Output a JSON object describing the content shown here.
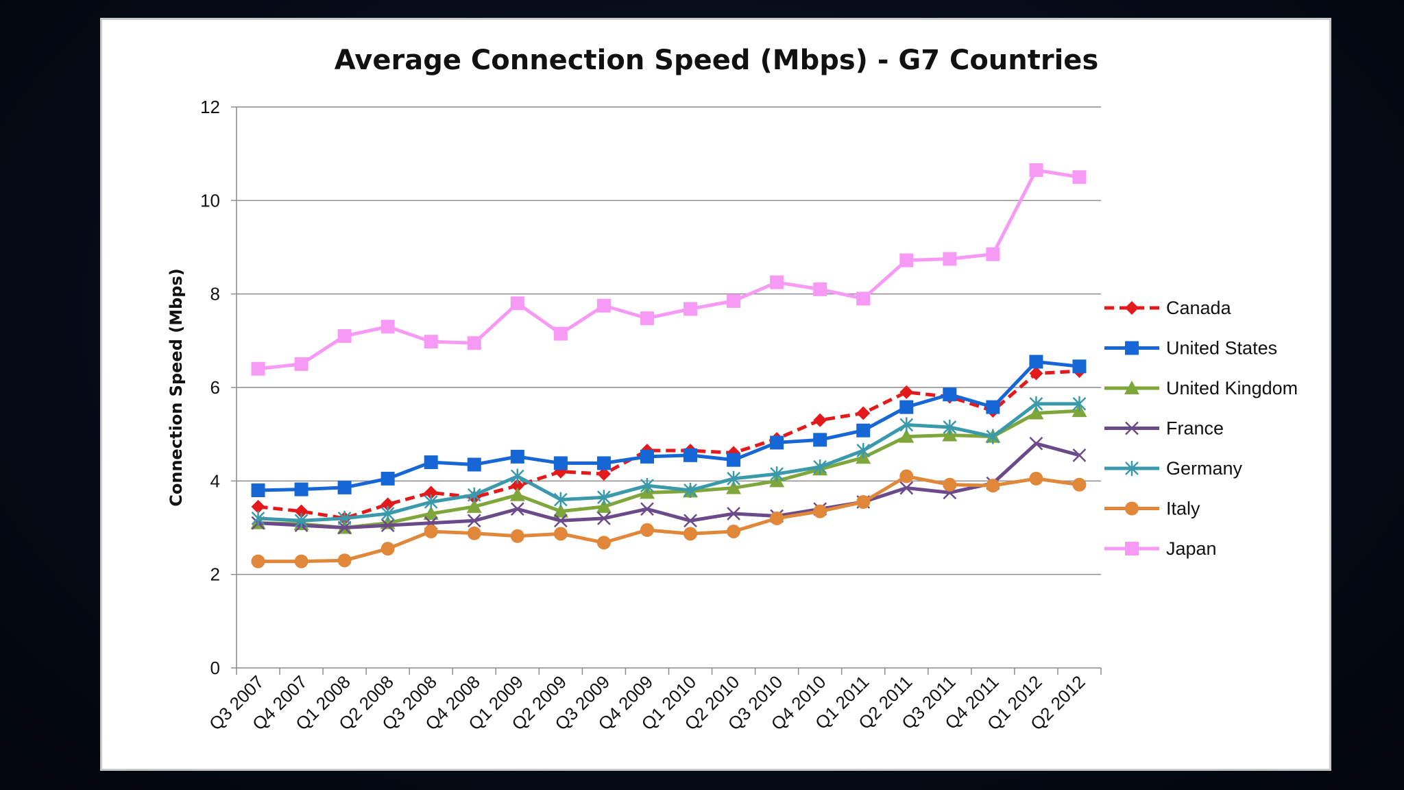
{
  "chart_data": {
    "type": "line",
    "title": "Average Connection  Speed (Mbps) - G7 Countries",
    "xlabel": "",
    "ylabel": "Connection Speed (Mbps)",
    "ylim": [
      0,
      12
    ],
    "yticks": [
      0,
      2,
      4,
      6,
      8,
      10,
      12
    ],
    "grid": true,
    "legend_position": "right",
    "categories": [
      "Q3 2007",
      "Q4 2007",
      "Q1 2008",
      "Q2 2008",
      "Q3 2008",
      "Q4 2008",
      "Q1 2009",
      "Q2 2009",
      "Q3 2009",
      "Q4 2009",
      "Q1 2010",
      "Q2 2010",
      "Q3 2010",
      "Q4 2010",
      "Q1 2011",
      "Q2 2011",
      "Q3 2011",
      "Q4 2011",
      "Q1 2012",
      "Q2 2012"
    ],
    "series": [
      {
        "name": "Canada",
        "color": "#e31a1c",
        "dashed": true,
        "marker": "diamond",
        "values": [
          3.45,
          3.35,
          3.2,
          3.5,
          3.75,
          3.65,
          3.9,
          4.2,
          4.15,
          4.65,
          4.65,
          4.6,
          4.9,
          5.3,
          5.45,
          5.9,
          5.8,
          5.5,
          6.3,
          6.35
        ]
      },
      {
        "name": "United States",
        "color": "#1766d6",
        "dashed": false,
        "marker": "square",
        "values": [
          3.8,
          3.82,
          3.86,
          4.05,
          4.4,
          4.35,
          4.52,
          4.38,
          4.38,
          4.52,
          4.55,
          4.45,
          4.82,
          4.88,
          5.08,
          5.58,
          5.85,
          5.58,
          6.55,
          6.45
        ]
      },
      {
        "name": "United Kingdom",
        "color": "#7ea63a",
        "dashed": false,
        "marker": "triangle",
        "values": [
          3.1,
          3.08,
          3.0,
          3.1,
          3.3,
          3.45,
          3.7,
          3.35,
          3.45,
          3.75,
          3.78,
          3.85,
          4.0,
          4.25,
          4.5,
          4.95,
          4.98,
          4.95,
          5.45,
          5.5
        ]
      },
      {
        "name": "France",
        "color": "#6b4a8a",
        "dashed": false,
        "marker": "x",
        "values": [
          3.1,
          3.05,
          3.0,
          3.05,
          3.1,
          3.15,
          3.4,
          3.15,
          3.2,
          3.4,
          3.15,
          3.3,
          3.25,
          3.4,
          3.55,
          3.85,
          3.75,
          3.95,
          4.8,
          4.55
        ]
      },
      {
        "name": "Germany",
        "color": "#3a9aab",
        "dashed": false,
        "marker": "asterisk",
        "values": [
          3.2,
          3.15,
          3.2,
          3.3,
          3.55,
          3.7,
          4.1,
          3.6,
          3.65,
          3.9,
          3.8,
          4.05,
          4.15,
          4.3,
          4.65,
          5.2,
          5.15,
          4.95,
          5.65,
          5.65
        ]
      },
      {
        "name": "Italy",
        "color": "#e0873a",
        "dashed": false,
        "marker": "circle",
        "values": [
          2.28,
          2.28,
          2.3,
          2.55,
          2.92,
          2.88,
          2.82,
          2.87,
          2.68,
          2.95,
          2.87,
          2.92,
          3.2,
          3.35,
          3.55,
          4.1,
          3.92,
          3.9,
          4.05,
          3.92
        ]
      },
      {
        "name": "Japan",
        "color": "#f79af5",
        "dashed": false,
        "marker": "square",
        "values": [
          6.4,
          6.5,
          7.1,
          7.3,
          6.98,
          6.95,
          7.8,
          7.15,
          7.75,
          7.48,
          7.68,
          7.85,
          8.25,
          8.1,
          7.9,
          8.72,
          8.75,
          8.85,
          10.65,
          10.5
        ]
      }
    ]
  }
}
